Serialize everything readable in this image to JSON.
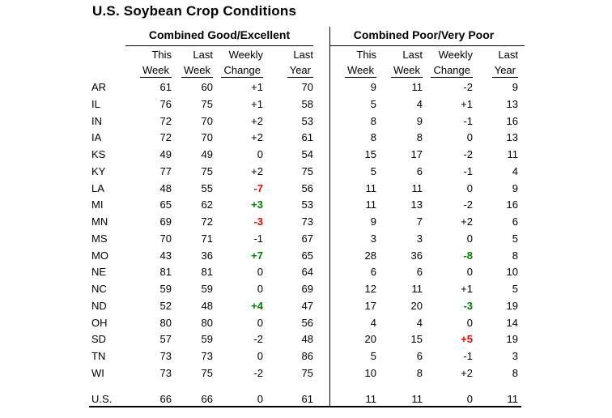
{
  "title": "U.S. Soybean Crop Conditions",
  "table": {
    "sections": [
      {
        "title": "Combined Good/Excellent"
      },
      {
        "title": "Combined Poor/Very Poor"
      }
    ],
    "column_headers": {
      "line1": [
        "This",
        "Last",
        "Weekly",
        "Last"
      ],
      "line2": [
        "Week",
        "Week",
        "Change",
        "Year"
      ]
    }
  },
  "colors": {
    "improvement_green": "#008000",
    "decline_red": "#ee0000",
    "text": "#000000",
    "background": "#ffffff"
  },
  "chart_data": {
    "type": "table",
    "title": "U.S. Soybean Crop Conditions",
    "sections": [
      "Combined Good/Excellent",
      "Combined Poor/Very Poor"
    ],
    "columns": [
      "This Week",
      "Last Week",
      "Weekly Change",
      "Last Year"
    ],
    "rows": [
      {
        "state": "AR",
        "good_excellent": {
          "this_week": 61,
          "last_week": 60,
          "change": "+1",
          "change_color": "black",
          "last_year": 70
        },
        "poor_very_poor": {
          "this_week": 9,
          "last_week": 11,
          "change": "-2",
          "change_color": "black",
          "last_year": 9
        }
      },
      {
        "state": "IL",
        "good_excellent": {
          "this_week": 76,
          "last_week": 75,
          "change": "+1",
          "change_color": "black",
          "last_year": 58
        },
        "poor_very_poor": {
          "this_week": 5,
          "last_week": 4,
          "change": "+1",
          "change_color": "black",
          "last_year": 13
        }
      },
      {
        "state": "IN",
        "good_excellent": {
          "this_week": 72,
          "last_week": 70,
          "change": "+2",
          "change_color": "black",
          "last_year": 53
        },
        "poor_very_poor": {
          "this_week": 8,
          "last_week": 9,
          "change": "-1",
          "change_color": "black",
          "last_year": 16
        }
      },
      {
        "state": "IA",
        "good_excellent": {
          "this_week": 72,
          "last_week": 70,
          "change": "+2",
          "change_color": "black",
          "last_year": 61
        },
        "poor_very_poor": {
          "this_week": 8,
          "last_week": 8,
          "change": "0",
          "change_color": "black",
          "last_year": 13
        }
      },
      {
        "state": "KS",
        "good_excellent": {
          "this_week": 49,
          "last_week": 49,
          "change": "0",
          "change_color": "black",
          "last_year": 54
        },
        "poor_very_poor": {
          "this_week": 15,
          "last_week": 17,
          "change": "-2",
          "change_color": "black",
          "last_year": 11
        }
      },
      {
        "state": "KY",
        "good_excellent": {
          "this_week": 77,
          "last_week": 75,
          "change": "+2",
          "change_color": "black",
          "last_year": 75
        },
        "poor_very_poor": {
          "this_week": 5,
          "last_week": 6,
          "change": "-1",
          "change_color": "black",
          "last_year": 4
        }
      },
      {
        "state": "LA",
        "good_excellent": {
          "this_week": 48,
          "last_week": 55,
          "change": "-7",
          "change_color": "red",
          "last_year": 56
        },
        "poor_very_poor": {
          "this_week": 11,
          "last_week": 11,
          "change": "0",
          "change_color": "black",
          "last_year": 9
        }
      },
      {
        "state": "MI",
        "good_excellent": {
          "this_week": 65,
          "last_week": 62,
          "change": "+3",
          "change_color": "green",
          "last_year": 53
        },
        "poor_very_poor": {
          "this_week": 11,
          "last_week": 13,
          "change": "-2",
          "change_color": "black",
          "last_year": 16
        }
      },
      {
        "state": "MN",
        "good_excellent": {
          "this_week": 69,
          "last_week": 72,
          "change": "-3",
          "change_color": "red",
          "last_year": 73
        },
        "poor_very_poor": {
          "this_week": 9,
          "last_week": 7,
          "change": "+2",
          "change_color": "black",
          "last_year": 6
        }
      },
      {
        "state": "MS",
        "good_excellent": {
          "this_week": 70,
          "last_week": 71,
          "change": "-1",
          "change_color": "black",
          "last_year": 67
        },
        "poor_very_poor": {
          "this_week": 3,
          "last_week": 3,
          "change": "0",
          "change_color": "black",
          "last_year": 5
        }
      },
      {
        "state": "MO",
        "good_excellent": {
          "this_week": 43,
          "last_week": 36,
          "change": "+7",
          "change_color": "green",
          "last_year": 65
        },
        "poor_very_poor": {
          "this_week": 28,
          "last_week": 36,
          "change": "-8",
          "change_color": "green",
          "last_year": 8
        }
      },
      {
        "state": "NE",
        "good_excellent": {
          "this_week": 81,
          "last_week": 81,
          "change": "0",
          "change_color": "black",
          "last_year": 64
        },
        "poor_very_poor": {
          "this_week": 6,
          "last_week": 6,
          "change": "0",
          "change_color": "black",
          "last_year": 10
        }
      },
      {
        "state": "NC",
        "good_excellent": {
          "this_week": 59,
          "last_week": 59,
          "change": "0",
          "change_color": "black",
          "last_year": 69
        },
        "poor_very_poor": {
          "this_week": 12,
          "last_week": 11,
          "change": "+1",
          "change_color": "black",
          "last_year": 5
        }
      },
      {
        "state": "ND",
        "good_excellent": {
          "this_week": 52,
          "last_week": 48,
          "change": "+4",
          "change_color": "green",
          "last_year": 47
        },
        "poor_very_poor": {
          "this_week": 17,
          "last_week": 20,
          "change": "-3",
          "change_color": "green",
          "last_year": 19
        }
      },
      {
        "state": "OH",
        "good_excellent": {
          "this_week": 80,
          "last_week": 80,
          "change": "0",
          "change_color": "black",
          "last_year": 56
        },
        "poor_very_poor": {
          "this_week": 4,
          "last_week": 4,
          "change": "0",
          "change_color": "black",
          "last_year": 14
        }
      },
      {
        "state": "SD",
        "good_excellent": {
          "this_week": 57,
          "last_week": 59,
          "change": "-2",
          "change_color": "black",
          "last_year": 48
        },
        "poor_very_poor": {
          "this_week": 20,
          "last_week": 15,
          "change": "+5",
          "change_color": "red",
          "last_year": 19
        }
      },
      {
        "state": "TN",
        "good_excellent": {
          "this_week": 73,
          "last_week": 73,
          "change": "0",
          "change_color": "black",
          "last_year": 86
        },
        "poor_very_poor": {
          "this_week": 5,
          "last_week": 6,
          "change": "-1",
          "change_color": "black",
          "last_year": 3
        }
      },
      {
        "state": "WI",
        "good_excellent": {
          "this_week": 73,
          "last_week": 75,
          "change": "-2",
          "change_color": "black",
          "last_year": 75
        },
        "poor_very_poor": {
          "this_week": 10,
          "last_week": 8,
          "change": "+2",
          "change_color": "black",
          "last_year": 8
        }
      }
    ],
    "total": {
      "state": "U.S.",
      "good_excellent": {
        "this_week": 66,
        "last_week": 66,
        "change": "0",
        "change_color": "black",
        "last_year": 61
      },
      "poor_very_poor": {
        "this_week": 11,
        "last_week": 11,
        "change": "0",
        "change_color": "black",
        "last_year": 11
      }
    }
  }
}
